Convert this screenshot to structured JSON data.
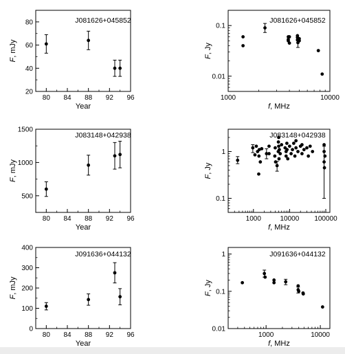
{
  "chart_data": [
    {
      "type": "scatter",
      "title": "J081626+045852",
      "xlabel": "Year",
      "ylabel_var": "F",
      "ylabel_unit": ", mJy",
      "xlim": [
        78,
        96
      ],
      "ylim": [
        20,
        90
      ],
      "xticks": [
        80,
        84,
        88,
        92,
        96
      ],
      "yticks": [
        20,
        40,
        60,
        80
      ],
      "points": [
        {
          "x": 80,
          "y": 61,
          "err": 8
        },
        {
          "x": 88,
          "y": 64,
          "err": 8
        },
        {
          "x": 93,
          "y": 40,
          "err": 7
        },
        {
          "x": 94,
          "y": 40,
          "err": 7
        }
      ]
    },
    {
      "type": "scatter",
      "title": "J081626+045852",
      "xlabel_var": "f",
      "xlabel_unit": ", MHz",
      "ylabel_var": "F",
      "ylabel_unit": ", Jy",
      "xscale": "log",
      "yscale": "log",
      "xlim": [
        1000,
        10000
      ],
      "ylim": [
        0.005,
        0.2
      ],
      "xticks": [
        1000,
        10000
      ],
      "xticklabels": [
        "1000",
        "10000"
      ],
      "yticks": [
        0.01,
        0.1
      ],
      "yticklabels": [
        "0.01",
        "0.1"
      ],
      "points": [
        {
          "x": 1400,
          "y": 0.04
        },
        {
          "x": 1400,
          "y": 0.06
        },
        {
          "x": 2300,
          "y": 0.09,
          "err_lo": 0.073,
          "err_hi": 0.11
        },
        {
          "x": 3900,
          "y": 0.06
        },
        {
          "x": 3900,
          "y": 0.053
        },
        {
          "x": 3900,
          "y": 0.05
        },
        {
          "x": 4000,
          "y": 0.06
        },
        {
          "x": 4000,
          "y": 0.045
        },
        {
          "x": 4800,
          "y": 0.063
        },
        {
          "x": 4800,
          "y": 0.058
        },
        {
          "x": 4800,
          "y": 0.052
        },
        {
          "x": 4850,
          "y": 0.046,
          "err_lo": 0.037,
          "err_hi": 0.055
        },
        {
          "x": 5000,
          "y": 0.05
        },
        {
          "x": 5000,
          "y": 0.055
        },
        {
          "x": 7700,
          "y": 0.032
        },
        {
          "x": 8400,
          "y": 0.011
        }
      ]
    },
    {
      "type": "scatter",
      "title": "J083148+042938",
      "xlabel": "Year",
      "ylabel_var": "F",
      "ylabel_unit": ", mJy",
      "xlim": [
        78,
        96
      ],
      "ylim": [
        250,
        1500
      ],
      "xticks": [
        80,
        84,
        88,
        92,
        96
      ],
      "yticks": [
        500,
        1000,
        1500
      ],
      "points": [
        {
          "x": 80,
          "y": 600,
          "err": 110
        },
        {
          "x": 88,
          "y": 960,
          "err": 150
        },
        {
          "x": 93,
          "y": 1100,
          "err": 200
        },
        {
          "x": 94,
          "y": 1120,
          "err": 200
        }
      ]
    },
    {
      "type": "scatter",
      "title": "J083148+042938",
      "xlabel_var": "f",
      "xlabel_unit": ", MHz",
      "ylabel_var": "F",
      "ylabel_unit": ", Jy",
      "xscale": "log",
      "yscale": "log",
      "xlim": [
        200,
        130000
      ],
      "ylim": [
        0.05,
        3
      ],
      "xticks": [
        1000,
        10000,
        100000
      ],
      "xticklabels": [
        "1000",
        "10000",
        "100000"
      ],
      "yticks": [
        0.1,
        1
      ],
      "yticklabels": [
        "0.1",
        "1"
      ],
      "points": [
        {
          "x": 365,
          "y": 0.65,
          "err_lo": 0.55,
          "err_hi": 0.78
        },
        {
          "x": 960,
          "y": 1.2,
          "err_lo": 0.95,
          "err_hi": 1.4
        },
        {
          "x": 1100,
          "y": 0.85
        },
        {
          "x": 1200,
          "y": 1.3
        },
        {
          "x": 1300,
          "y": 1.0
        },
        {
          "x": 1400,
          "y": 0.33
        },
        {
          "x": 1420,
          "y": 0.8
        },
        {
          "x": 1450,
          "y": 1.1
        },
        {
          "x": 1550,
          "y": 0.6
        },
        {
          "x": 1700,
          "y": 1.15
        },
        {
          "x": 2300,
          "y": 0.9,
          "err_lo": 0.7,
          "err_hi": 1.15
        },
        {
          "x": 2700,
          "y": 1.3
        },
        {
          "x": 2700,
          "y": 0.9
        },
        {
          "x": 3900,
          "y": 0.8
        },
        {
          "x": 4000,
          "y": 1.2
        },
        {
          "x": 4100,
          "y": 0.6
        },
        {
          "x": 4500,
          "y": 0.5,
          "err_lo": 0.38,
          "err_hi": 0.62
        },
        {
          "x": 4850,
          "y": 1.0
        },
        {
          "x": 4900,
          "y": 1.6
        },
        {
          "x": 5000,
          "y": 1.3
        },
        {
          "x": 5000,
          "y": 2.0
        },
        {
          "x": 5100,
          "y": 0.7
        },
        {
          "x": 5200,
          "y": 1.1
        },
        {
          "x": 5500,
          "y": 0.9
        },
        {
          "x": 6000,
          "y": 1.4
        },
        {
          "x": 7500,
          "y": 1.2
        },
        {
          "x": 8000,
          "y": 0.8
        },
        {
          "x": 8000,
          "y": 1.0
        },
        {
          "x": 8400,
          "y": 1.5
        },
        {
          "x": 8500,
          "y": 1.1
        },
        {
          "x": 8900,
          "y": 0.7
        },
        {
          "x": 10000,
          "y": 1.3
        },
        {
          "x": 11000,
          "y": 0.9
        },
        {
          "x": 12000,
          "y": 1.1
        },
        {
          "x": 13000,
          "y": 1.5
        },
        {
          "x": 14000,
          "y": 0.8
        },
        {
          "x": 15000,
          "y": 1.2
        },
        {
          "x": 15000,
          "y": 1.7
        },
        {
          "x": 17000,
          "y": 1.0
        },
        {
          "x": 20000,
          "y": 1.3
        },
        {
          "x": 22000,
          "y": 0.9
        },
        {
          "x": 22000,
          "y": 1.4
        },
        {
          "x": 25000,
          "y": 1.1
        },
        {
          "x": 30000,
          "y": 1.2
        },
        {
          "x": 33000,
          "y": 0.8
        },
        {
          "x": 37000,
          "y": 1.3
        },
        {
          "x": 43000,
          "y": 1.0
        },
        {
          "x": 90000,
          "y": 1.4
        },
        {
          "x": 90000,
          "y": 1.0
        },
        {
          "x": 90000,
          "y": 0.6,
          "err_lo": 0.1,
          "err_hi": 1.3
        },
        {
          "x": 92000,
          "y": 0.45
        },
        {
          "x": 95000,
          "y": 0.8
        }
      ]
    },
    {
      "type": "scatter",
      "title": "J091636+044132",
      "xlabel": "Year",
      "ylabel_var": "F",
      "ylabel_unit": ", mJy",
      "xlim": [
        78,
        96
      ],
      "ylim": [
        0,
        400
      ],
      "xticks": [
        80,
        84,
        88,
        92,
        96
      ],
      "yticks": [
        0,
        100,
        200,
        300,
        400
      ],
      "points": [
        {
          "x": 80,
          "y": 110,
          "err": 18
        },
        {
          "x": 88,
          "y": 143,
          "err": 28
        },
        {
          "x": 93,
          "y": 275,
          "err": 50
        },
        {
          "x": 94,
          "y": 157,
          "err": 40
        }
      ]
    },
    {
      "type": "scatter",
      "title": "J091636+044132",
      "xlabel_var": "f",
      "xlabel_unit": ", MHz",
      "ylabel_var": "F",
      "ylabel_unit": ", Jy",
      "xscale": "log",
      "yscale": "log",
      "xlim": [
        200,
        15000
      ],
      "ylim": [
        0.01,
        1.5
      ],
      "xticks": [
        1000,
        10000
      ],
      "xticklabels": [
        "1000",
        "10000"
      ],
      "yticks": [
        0.01,
        0.1,
        1
      ],
      "yticklabels": [
        "0.01",
        "0.1",
        "1"
      ],
      "points": [
        {
          "x": 365,
          "y": 0.17
        },
        {
          "x": 930,
          "y": 0.3,
          "err_lo": 0.24,
          "err_hi": 0.37
        },
        {
          "x": 960,
          "y": 0.24
        },
        {
          "x": 1400,
          "y": 0.2
        },
        {
          "x": 1400,
          "y": 0.17
        },
        {
          "x": 2300,
          "y": 0.18,
          "err_lo": 0.15,
          "err_hi": 0.21
        },
        {
          "x": 3900,
          "y": 0.14
        },
        {
          "x": 3900,
          "y": 0.11,
          "err_lo": 0.09,
          "err_hi": 0.13
        },
        {
          "x": 4000,
          "y": 0.1
        },
        {
          "x": 4800,
          "y": 0.09
        },
        {
          "x": 4850,
          "y": 0.085
        },
        {
          "x": 11000,
          "y": 0.038
        }
      ]
    }
  ]
}
